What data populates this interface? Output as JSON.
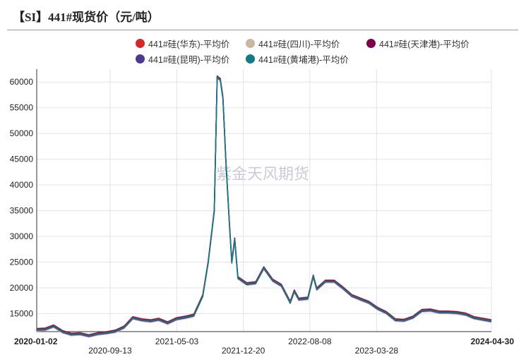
{
  "title": "【SI】441#现货价（元/吨）",
  "watermark": "紫金天风期货",
  "colors": {
    "series_huadong": "#d62728",
    "series_sichuan": "#c8b8a2",
    "series_tianjin": "#7b0050",
    "series_kunming": "#4b3a8f",
    "series_huangpu": "#127b84",
    "grid": "#e3e3e3",
    "axis": "#333333"
  },
  "chart_data": {
    "type": "line",
    "title": "【SI】441#现货价（元/吨）",
    "xlabel": "",
    "ylabel": "",
    "xlim": [
      "2020-01-02",
      "2024-04-30"
    ],
    "ylim": [
      11500,
      62500
    ],
    "yticks": [
      15000,
      20000,
      25000,
      30000,
      35000,
      40000,
      45000,
      50000,
      55000,
      60000
    ],
    "xticks": [
      "2020-01-02",
      "2020-09-13",
      "2021-05-03",
      "2021-12-20",
      "2022-08-08",
      "2023-03-28",
      "2024-04-30"
    ],
    "grid": true,
    "legend_position": "top",
    "base_series_points": [
      [
        "2020-01-02",
        11900
      ],
      [
        "2020-02-01",
        12000
      ],
      [
        "2020-03-01",
        12600
      ],
      [
        "2020-04-01",
        11500
      ],
      [
        "2020-05-01",
        11000
      ],
      [
        "2020-06-01",
        11100
      ],
      [
        "2020-07-01",
        10700
      ],
      [
        "2020-08-01",
        11100
      ],
      [
        "2020-09-01",
        11300
      ],
      [
        "2020-10-01",
        11600
      ],
      [
        "2020-11-01",
        12400
      ],
      [
        "2020-12-01",
        14200
      ],
      [
        "2021-01-01",
        13800
      ],
      [
        "2021-02-01",
        13600
      ],
      [
        "2021-03-01",
        13900
      ],
      [
        "2021-04-01",
        13200
      ],
      [
        "2021-05-01",
        14000
      ],
      [
        "2021-06-01",
        14300
      ],
      [
        "2021-07-01",
        14700
      ],
      [
        "2021-08-01",
        18500
      ],
      [
        "2021-08-20",
        25000
      ],
      [
        "2021-09-10",
        35000
      ],
      [
        "2021-09-20",
        61000
      ],
      [
        "2021-10-01",
        60500
      ],
      [
        "2021-10-10",
        57000
      ],
      [
        "2021-10-20",
        45000
      ],
      [
        "2021-11-01",
        33000
      ],
      [
        "2021-11-10",
        25000
      ],
      [
        "2021-11-20",
        29500
      ],
      [
        "2021-12-01",
        22000
      ],
      [
        "2022-01-01",
        20800
      ],
      [
        "2022-02-01",
        21000
      ],
      [
        "2022-03-01",
        23900
      ],
      [
        "2022-04-01",
        21500
      ],
      [
        "2022-05-01",
        20500
      ],
      [
        "2022-06-01",
        17200
      ],
      [
        "2022-06-15",
        19400
      ],
      [
        "2022-07-01",
        17800
      ],
      [
        "2022-08-01",
        18000
      ],
      [
        "2022-08-20",
        22300
      ],
      [
        "2022-09-01",
        19800
      ],
      [
        "2022-10-01",
        21300
      ],
      [
        "2022-11-01",
        21300
      ],
      [
        "2022-12-01",
        20000
      ],
      [
        "2023-01-01",
        18500
      ],
      [
        "2023-02-01",
        17800
      ],
      [
        "2023-03-01",
        17200
      ],
      [
        "2023-04-01",
        16000
      ],
      [
        "2023-05-01",
        15200
      ],
      [
        "2023-06-01",
        13800
      ],
      [
        "2023-07-01",
        13700
      ],
      [
        "2023-08-01",
        14300
      ],
      [
        "2023-09-01",
        15600
      ],
      [
        "2023-10-01",
        15700
      ],
      [
        "2023-11-01",
        15300
      ],
      [
        "2023-12-01",
        15300
      ],
      [
        "2024-01-01",
        15200
      ],
      [
        "2024-02-01",
        14900
      ],
      [
        "2024-03-01",
        14200
      ],
      [
        "2024-04-30",
        13600
      ]
    ],
    "series": [
      {
        "name": "441#硅(华东)-平均价",
        "offset": 200
      },
      {
        "name": "441#硅(四川)-平均价",
        "offset": -300
      },
      {
        "name": "441#硅(天津港)-平均价",
        "offset": 100
      },
      {
        "name": "441#硅(昆明)-平均价",
        "offset": -150
      },
      {
        "name": "441#硅(黄埔港)-平均价",
        "offset": 0
      }
    ]
  }
}
